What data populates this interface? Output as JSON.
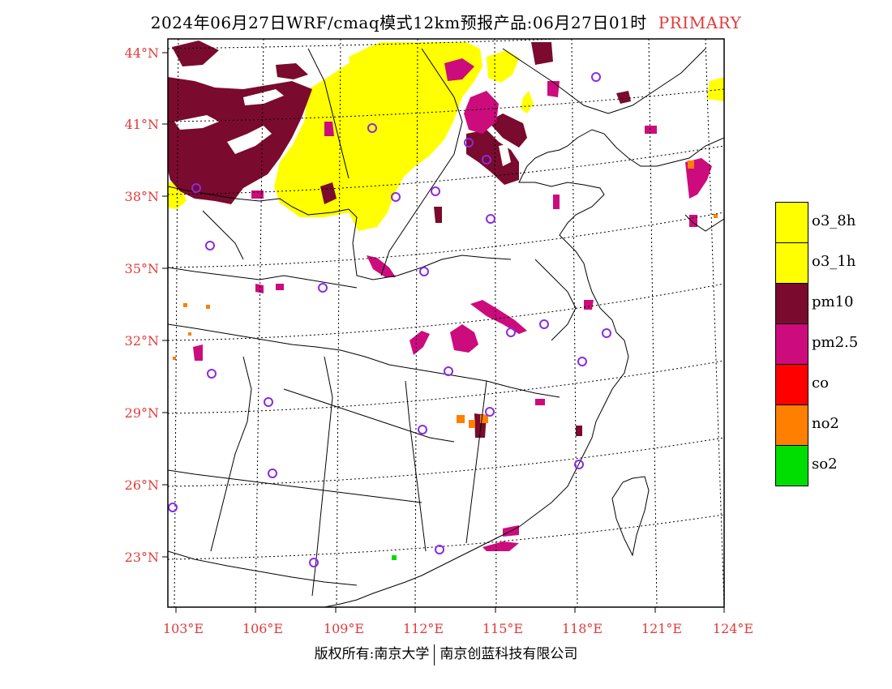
{
  "title": {
    "main": "2024年06月27日WRF/cmaq模式12km预报产品:06月27日01时",
    "tag": "PRIMARY"
  },
  "axes": {
    "lat_labels": [
      "44°N",
      "41°N",
      "38°N",
      "35°N",
      "32°N",
      "29°N",
      "26°N",
      "23°N"
    ],
    "lon_labels": [
      "103°E",
      "106°E",
      "109°E",
      "112°E",
      "115°E",
      "118°E",
      "121°E",
      "124°E"
    ]
  },
  "legend": {
    "items": [
      {
        "label": "o3_8h",
        "color": "#ffff00"
      },
      {
        "label": "o3_1h",
        "color": "#ffff00"
      },
      {
        "label": "pm10",
        "color": "#7a0a2e"
      },
      {
        "label": "pm2.5",
        "color": "#cc0c7c"
      },
      {
        "label": "co",
        "color": "#ff0000"
      },
      {
        "label": "no2",
        "color": "#ff7f00"
      },
      {
        "label": "so2",
        "color": "#00dd00"
      }
    ]
  },
  "colors": {
    "lat_lon_label": "#e23a3a",
    "station_marker": "#8a2be2",
    "o3": "#ffff00",
    "pm10": "#7a0a2e",
    "pm25": "#cc0c7c",
    "no2": "#ff7f00",
    "so2": "#00dd00"
  },
  "footer": {
    "left": "版权所有:南京大学",
    "right": "南京创蓝科技有限公司"
  }
}
